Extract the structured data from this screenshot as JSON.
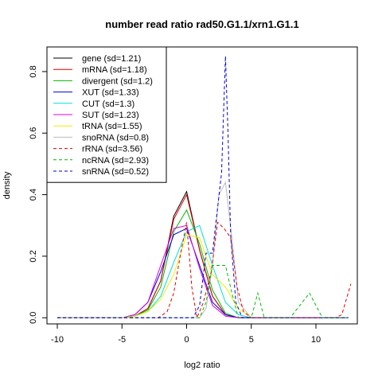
{
  "chart_data": {
    "type": "line",
    "title": "number read ratio rad50.G1.1/xrn1.G1.1",
    "xlabel": "log2 ratio",
    "ylabel": "density",
    "xlim": [
      -10.8,
      13.2
    ],
    "ylim": [
      -0.02,
      0.88
    ],
    "x_ticks": [
      -10,
      -5,
      0,
      5,
      10
    ],
    "y_ticks": [
      0.0,
      0.2,
      0.4,
      0.6,
      0.8
    ],
    "grid": false,
    "legend_position": "top-left",
    "series": [
      {
        "name": "gene (sd=1.21)",
        "color": "#000000",
        "dash": "solid",
        "x": [
          -10,
          -5,
          -4,
          -3,
          -2,
          -1,
          0,
          1,
          2,
          3,
          4,
          5,
          12.5
        ],
        "y": [
          0,
          0,
          0.005,
          0.03,
          0.12,
          0.33,
          0.41,
          0.22,
          0.07,
          0.01,
          0,
          0,
          0
        ]
      },
      {
        "name": "mRNA (sd=1.18)",
        "color": "#df0000",
        "dash": "solid",
        "x": [
          -10,
          -5,
          -4,
          -3,
          -2,
          -1,
          0,
          1,
          2,
          3,
          4,
          5,
          12.5
        ],
        "y": [
          0,
          0,
          0.005,
          0.03,
          0.12,
          0.32,
          0.4,
          0.22,
          0.07,
          0.01,
          0,
          0,
          0
        ]
      },
      {
        "name": "divergent (sd=1.2)",
        "color": "#00bb00",
        "dash": "solid",
        "x": [
          -10,
          -5,
          -4,
          -3,
          -2,
          -1,
          0,
          1,
          2,
          3,
          4,
          5,
          12.5
        ],
        "y": [
          0,
          0,
          0.005,
          0.025,
          0.1,
          0.28,
          0.35,
          0.24,
          0.09,
          0.015,
          0,
          0,
          0
        ]
      },
      {
        "name": "XUT (sd=1.33)",
        "color": "#0000dd",
        "dash": "solid",
        "x": [
          -10,
          -5,
          -4,
          -3,
          -2,
          -1,
          0,
          1,
          2,
          3,
          4,
          5,
          12.5
        ],
        "y": [
          0,
          0,
          0.01,
          0.05,
          0.15,
          0.27,
          0.29,
          0.17,
          0.05,
          0.01,
          0,
          0,
          0
        ]
      },
      {
        "name": "CUT (sd=1.3)",
        "color": "#00dddd",
        "dash": "solid",
        "x": [
          -10,
          -5,
          -4,
          -3,
          -2,
          -1,
          0,
          1,
          2,
          3,
          4,
          5,
          12.5
        ],
        "y": [
          0,
          0,
          0.005,
          0.02,
          0.07,
          0.18,
          0.28,
          0.3,
          0.17,
          0.05,
          0.01,
          0,
          0
        ]
      },
      {
        "name": "SUT (sd=1.23)",
        "color": "#dd00dd",
        "dash": "solid",
        "x": [
          -10,
          -5,
          -4,
          -3,
          -2,
          -1,
          0,
          1,
          2,
          3,
          4,
          5,
          12.5
        ],
        "y": [
          0,
          0,
          0.01,
          0.05,
          0.17,
          0.29,
          0.3,
          0.16,
          0.04,
          0.005,
          0,
          0,
          0
        ]
      },
      {
        "name": "tRNA (sd=1.55)",
        "color": "#eeee00",
        "dash": "solid",
        "x": [
          -10,
          -5,
          -4,
          -3,
          -2,
          -1,
          0,
          1,
          2,
          3,
          4,
          5,
          12.5
        ],
        "y": [
          0,
          0,
          0.005,
          0.02,
          0.06,
          0.14,
          0.27,
          0.26,
          0.14,
          0.1,
          0.03,
          0,
          0
        ]
      },
      {
        "name": "snoRNA (sd=0.8)",
        "color": "#bbbbbb",
        "dash": "solid",
        "x": [
          -10,
          0,
          1,
          1.5,
          2,
          2.5,
          3,
          3.5,
          4,
          5,
          12.5
        ],
        "y": [
          0,
          0,
          0,
          0.03,
          0.17,
          0.4,
          0.44,
          0.26,
          0.05,
          0,
          0
        ]
      },
      {
        "name": "rRNA (sd=3.56)",
        "color": "#df0000",
        "dash": "dashed",
        "x": [
          -10,
          -2.2,
          -1.5,
          -1,
          -0.5,
          0,
          0.4,
          0.8,
          1.3,
          1.9,
          2.4,
          2.9,
          3.4,
          3.9,
          4.4,
          5,
          11.5,
          12,
          12.7
        ],
        "y": [
          0,
          0,
          0.02,
          0.08,
          0.2,
          0.31,
          0.1,
          0,
          0.05,
          0.15,
          0.31,
          0.29,
          0.26,
          0.1,
          0.02,
          0,
          0,
          0.01,
          0.11
        ]
      },
      {
        "name": "ncRNA (sd=2.93)",
        "color": "#00bb00",
        "dash": "dashed",
        "x": [
          -10,
          1,
          1.5,
          2,
          2.5,
          3,
          3.5,
          4,
          4.5,
          5,
          5.5,
          6,
          8,
          9.5,
          10.5,
          12.5
        ],
        "y": [
          0,
          0,
          0.05,
          0.17,
          0.17,
          0.17,
          0.08,
          0,
          0,
          0,
          0.08,
          0,
          0,
          0.08,
          0,
          0
        ]
      },
      {
        "name": "snRNA (sd=0.52)",
        "color": "#0000dd",
        "dash": "dashed",
        "x": [
          -10,
          0.5,
          1,
          1.5,
          2,
          2.4,
          2.7,
          3,
          3.2,
          3.4,
          3.8,
          4.3,
          5,
          12.5
        ],
        "y": [
          0,
          0,
          0.04,
          0.21,
          0.21,
          0.36,
          0.47,
          0.85,
          0.6,
          0.27,
          0.05,
          0,
          0,
          0
        ]
      }
    ]
  }
}
